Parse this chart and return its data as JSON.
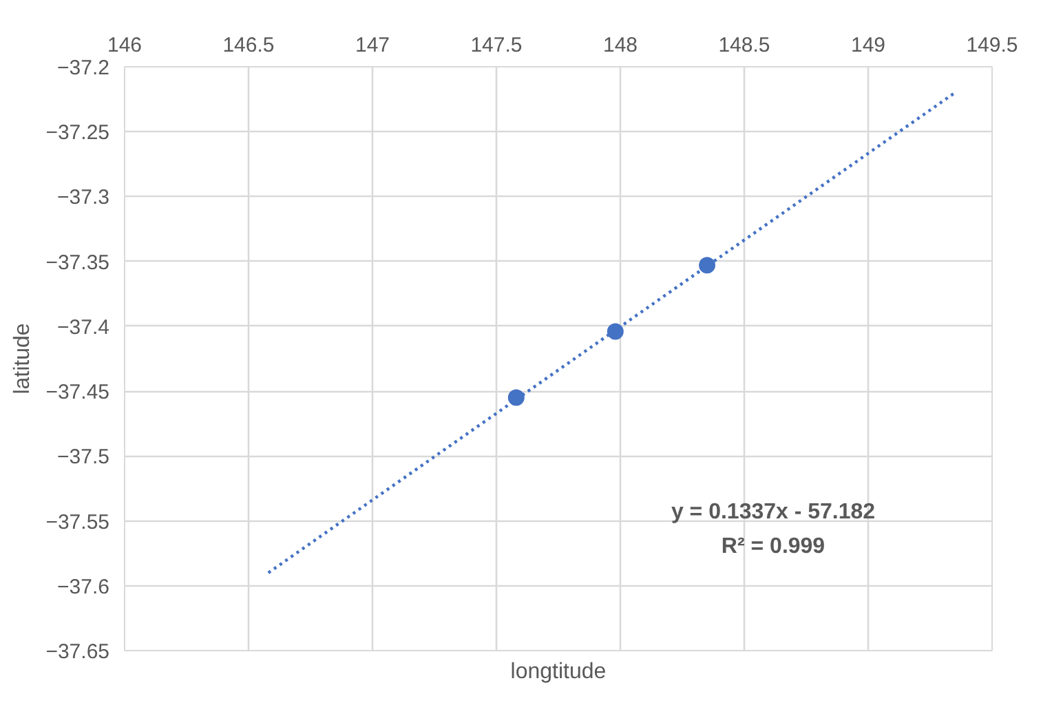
{
  "chart_data": {
    "type": "scatter",
    "xlabel": "longtitude",
    "ylabel": "latitude",
    "x": [
      147.58,
      147.98,
      148.35
    ],
    "series": [
      {
        "color": "#4472c4",
        "marker": "circle",
        "values": [
          -37.455,
          -37.404,
          -37.353
        ]
      },
      {
        "type": "line",
        "color": "#4472c4",
        "line_style": "dotted",
        "marker": "none",
        "x": [
          146.58,
          149.35
        ],
        "values": [
          -37.59,
          -37.22
        ]
      }
    ],
    "xlim": [
      146,
      149.5
    ],
    "xticks": [
      146,
      146.5,
      147,
      147.5,
      148,
      148.5,
      149,
      149.5
    ],
    "ylim": [
      -37.65,
      -37.2
    ],
    "yticks": [
      -37.65,
      -37.6,
      -37.55,
      -37.5,
      -37.45,
      -37.4,
      -37.35,
      -37.3,
      -37.25,
      -37.2
    ],
    "grid": true,
    "annotations": [
      "y = 0.1337x - 57.182",
      "R² = 0.999"
    ]
  }
}
